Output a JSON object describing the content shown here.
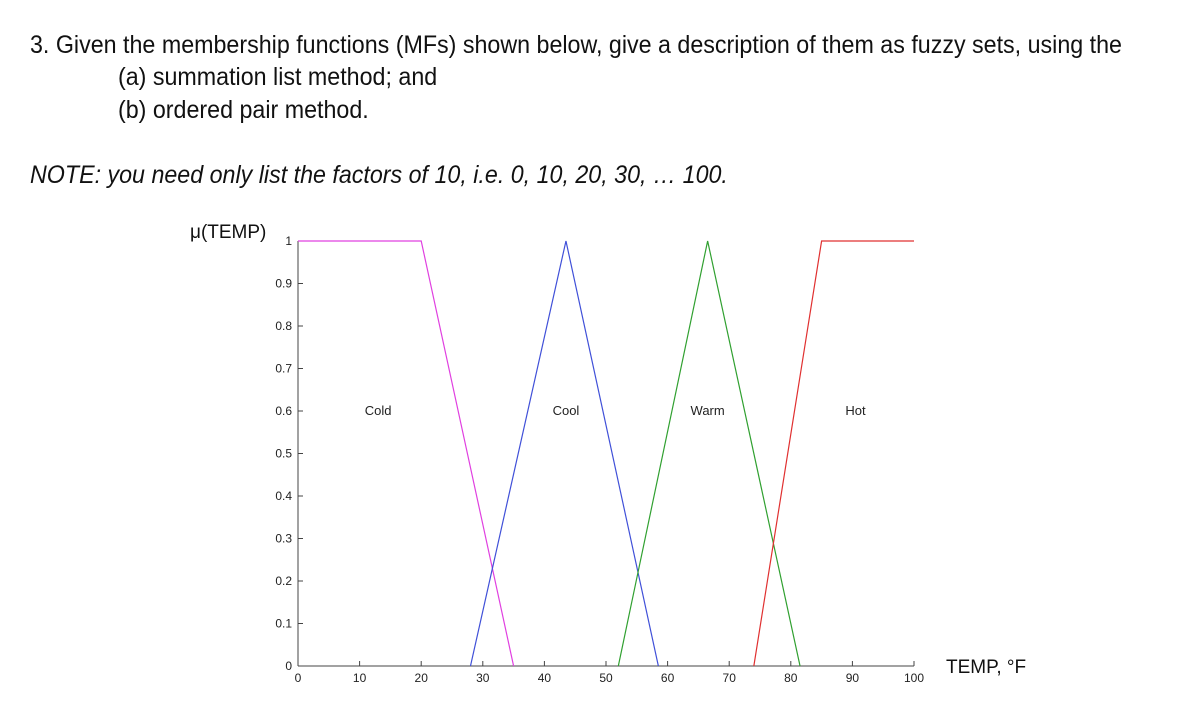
{
  "question": {
    "line1": "3. Given the membership functions (MFs) shown below, give a description of them as fuzzy sets, using the",
    "line2": "(a) summation list method; and",
    "line3": "(b) ordered pair method."
  },
  "note": "NOTE: you need only list the factors of 10, i.e. 0, 10, 20, 30, … 100.",
  "chart_data": {
    "type": "line",
    "ylabel": "μ(TEMP)",
    "xlabel": "TEMP, °F",
    "xlim": [
      0,
      100
    ],
    "ylim": [
      0,
      1
    ],
    "xticks": [
      "0",
      "10",
      "20",
      "30",
      "40",
      "50",
      "60",
      "70",
      "80",
      "90",
      "100"
    ],
    "yticks": [
      "0",
      "0.1",
      "0.2",
      "0.3",
      "0.4",
      "0.5",
      "0.6",
      "0.7",
      "0.8",
      "0.9",
      "1"
    ],
    "grid": false,
    "series": [
      {
        "name": "Cold",
        "color": "#e040e0",
        "x": [
          0,
          20,
          35
        ],
        "y": [
          1,
          1,
          0
        ],
        "label_x": 13,
        "label_y": 0.6
      },
      {
        "name": "Cool",
        "color": "#4050d8",
        "x": [
          28,
          43.5,
          58.5
        ],
        "y": [
          0,
          1,
          0
        ],
        "label_x": 43.5,
        "label_y": 0.6
      },
      {
        "name": "Warm",
        "color": "#30a030",
        "x": [
          52,
          66.5,
          81.5
        ],
        "y": [
          0,
          1,
          0
        ],
        "label_x": 66.5,
        "label_y": 0.6
      },
      {
        "name": "Hot",
        "color": "#e03030",
        "x": [
          74,
          85,
          100
        ],
        "y": [
          0,
          1,
          1
        ],
        "label_x": 90.5,
        "label_y": 0.6
      }
    ]
  }
}
